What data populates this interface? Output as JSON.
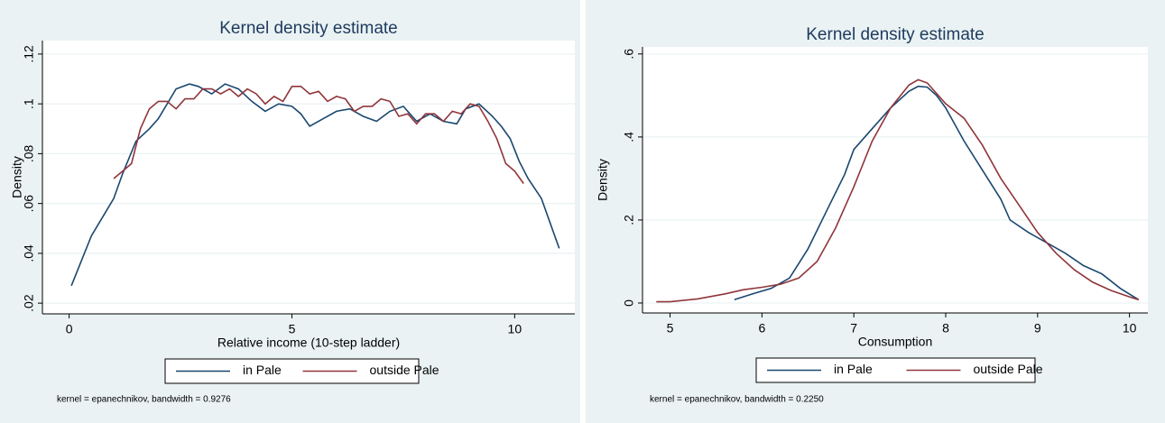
{
  "chart_data": [
    {
      "type": "line",
      "title": "Kernel density estimate",
      "x_label": "Relative income (10-step ladder)",
      "y_label": "Density",
      "xlim": [
        -0.6,
        11.35
      ],
      "ylim": [
        0.0157,
        0.1254
      ],
      "xticks": [
        0,
        5,
        10
      ],
      "yticks": [
        {
          "value": 0.02,
          "label": ".02"
        },
        {
          "value": 0.04,
          "label": ".04"
        },
        {
          "value": 0.06,
          "label": ".06"
        },
        {
          "value": 0.08,
          "label": ".08"
        },
        {
          "value": 0.1,
          "label": ".1"
        },
        {
          "value": 0.12,
          "label": ".12"
        }
      ],
      "grid": true,
      "note": "kernel = epanechnikov, bandwidth = 0.9276",
      "series": [
        {
          "name": "in Pale",
          "color": "#1a476f",
          "x": [
            0.05,
            0.5,
            1,
            1.2,
            1.5,
            1.8,
            2,
            2.4,
            2.7,
            2.9,
            3.2,
            3.5,
            3.8,
            4.1,
            4.4,
            4.7,
            5,
            5.2,
            5.4,
            5.7,
            6,
            6.3,
            6.6,
            6.9,
            7.2,
            7.5,
            7.8,
            8.1,
            8.4,
            8.7,
            8.9,
            9.2,
            9.5,
            9.7,
            9.9,
            10.1,
            10.3,
            10.6,
            10.8,
            11
          ],
          "values": [
            0.027,
            0.047,
            0.062,
            0.072,
            0.085,
            0.09,
            0.094,
            0.106,
            0.108,
            0.107,
            0.104,
            0.108,
            0.106,
            0.101,
            0.097,
            0.1,
            0.099,
            0.096,
            0.091,
            0.094,
            0.097,
            0.098,
            0.095,
            0.093,
            0.097,
            0.099,
            0.093,
            0.096,
            0.093,
            0.092,
            0.098,
            0.1,
            0.095,
            0.091,
            0.086,
            0.077,
            0.07,
            0.062,
            0.052,
            0.042
          ]
        },
        {
          "name": "outside Pale",
          "color": "#90353b",
          "x": [
            1,
            1.2,
            1.4,
            1.6,
            1.8,
            2,
            2.2,
            2.4,
            2.6,
            2.8,
            3,
            3.2,
            3.4,
            3.6,
            3.8,
            4,
            4.2,
            4.4,
            4.6,
            4.8,
            5,
            5.2,
            5.4,
            5.6,
            5.8,
            6,
            6.2,
            6.4,
            6.6,
            6.8,
            7,
            7.2,
            7.4,
            7.6,
            7.8,
            8,
            8.2,
            8.4,
            8.6,
            8.8,
            9,
            9.2,
            9.4,
            9.6,
            9.8,
            10,
            10.2
          ],
          "values": [
            0.07,
            0.073,
            0.076,
            0.09,
            0.098,
            0.101,
            0.101,
            0.098,
            0.102,
            0.102,
            0.106,
            0.106,
            0.104,
            0.106,
            0.103,
            0.106,
            0.104,
            0.1,
            0.103,
            0.101,
            0.107,
            0.107,
            0.104,
            0.105,
            0.101,
            0.103,
            0.102,
            0.097,
            0.099,
            0.099,
            0.102,
            0.101,
            0.095,
            0.096,
            0.092,
            0.096,
            0.096,
            0.093,
            0.097,
            0.096,
            0.1,
            0.099,
            0.093,
            0.086,
            0.076,
            0.073,
            0.068
          ]
        }
      ]
    },
    {
      "type": "line",
      "title": "Kernel density estimate",
      "x_label": "Consumption",
      "y_label": "Density",
      "xlim": [
        4.7,
        10.2
      ],
      "ylim": [
        -0.024,
        0.617
      ],
      "xticks": [
        5,
        6,
        7,
        8,
        9,
        10
      ],
      "yticks": [
        0,
        {
          "value": 0.2,
          "label": ".2"
        },
        {
          "value": 0.4,
          "label": ".4"
        },
        {
          "value": 0.6,
          "label": ".6"
        }
      ],
      "grid": true,
      "note": "kernel = epanechnikov, bandwidth = 0.2250",
      "series": [
        {
          "name": "in Pale",
          "color": "#1a476f",
          "x": [
            5.7,
            5.9,
            6.1,
            6.3,
            6.5,
            6.7,
            6.9,
            7,
            7.2,
            7.4,
            7.6,
            7.7,
            7.8,
            7.9,
            8,
            8.2,
            8.4,
            8.6,
            8.7,
            8.9,
            9.1,
            9.3,
            9.5,
            9.7,
            9.9,
            10.1
          ],
          "values": [
            0.008,
            0.022,
            0.035,
            0.06,
            0.13,
            0.22,
            0.31,
            0.37,
            0.42,
            0.47,
            0.51,
            0.522,
            0.52,
            0.5,
            0.47,
            0.39,
            0.32,
            0.25,
            0.2,
            0.17,
            0.145,
            0.12,
            0.09,
            0.07,
            0.035,
            0.008
          ]
        },
        {
          "name": "outside Pale",
          "color": "#90353b",
          "x": [
            4.85,
            5,
            5.3,
            5.6,
            5.8,
            6,
            6.2,
            6.4,
            6.6,
            6.8,
            7,
            7.2,
            7.4,
            7.6,
            7.7,
            7.8,
            8,
            8.2,
            8.4,
            8.6,
            8.8,
            9,
            9.2,
            9.4,
            9.6,
            9.8,
            10,
            10.1
          ],
          "values": [
            0.003,
            0.003,
            0.01,
            0.022,
            0.032,
            0.038,
            0.045,
            0.06,
            0.1,
            0.18,
            0.28,
            0.39,
            0.47,
            0.525,
            0.538,
            0.53,
            0.48,
            0.445,
            0.38,
            0.3,
            0.235,
            0.17,
            0.12,
            0.08,
            0.05,
            0.03,
            0.015,
            0.008
          ]
        }
      ]
    }
  ]
}
